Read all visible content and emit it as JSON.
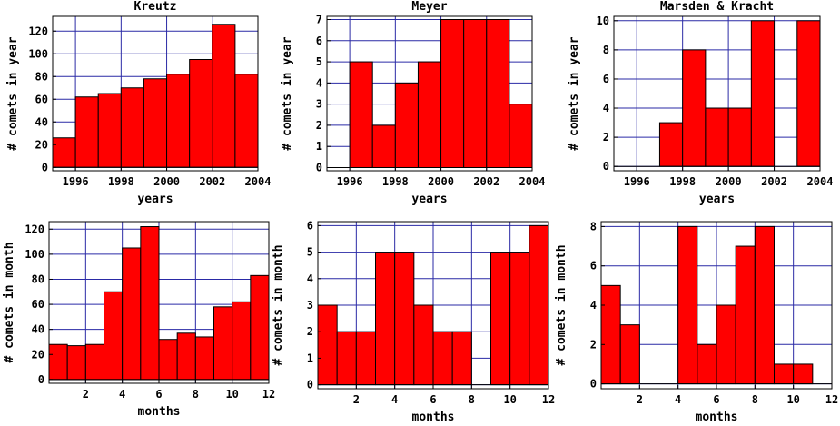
{
  "chart_data": [
    {
      "type": "bar",
      "title": "Kreutz",
      "xlabel": "years",
      "ylabel": "# comets in year",
      "xlim": [
        1995,
        2004
      ],
      "ylim": [
        -3,
        133
      ],
      "xticks": [
        1996,
        1998,
        2000,
        2002,
        2004
      ],
      "yticks": [
        0,
        20,
        40,
        60,
        80,
        100,
        120
      ],
      "bin_starts": [
        1995,
        1996,
        1997,
        1998,
        1999,
        2000,
        2001,
        2002,
        2003
      ],
      "bin_width": 1,
      "values": [
        26,
        62,
        65,
        70,
        78,
        82,
        95,
        126,
        82
      ],
      "grid": true
    },
    {
      "type": "bar",
      "title": "Meyer",
      "xlabel": "years",
      "ylabel": "# comets in year",
      "xlim": [
        1995,
        2004
      ],
      "ylim": [
        -0.15,
        7.15
      ],
      "xticks": [
        1996,
        1998,
        2000,
        2002,
        2004
      ],
      "yticks": [
        0,
        1,
        2,
        3,
        4,
        5,
        6,
        7
      ],
      "bin_starts": [
        1995,
        1996,
        1997,
        1998,
        1999,
        2000,
        2001,
        2002,
        2003
      ],
      "bin_width": 1,
      "values": [
        0,
        5,
        2,
        4,
        5,
        7,
        7,
        7,
        3
      ],
      "grid": true
    },
    {
      "type": "bar",
      "title": "Marsden & Kracht",
      "xlabel": "years",
      "ylabel": "# comets in year",
      "xlim": [
        1995,
        2004
      ],
      "ylim": [
        -0.3,
        10.3
      ],
      "xticks": [
        1996,
        1998,
        2000,
        2002,
        2004
      ],
      "yticks": [
        0,
        2,
        4,
        6,
        8,
        10
      ],
      "bin_starts": [
        1995,
        1996,
        1997,
        1998,
        1999,
        2000,
        2001,
        2002,
        2003
      ],
      "bin_width": 1,
      "values": [
        0,
        0,
        3,
        8,
        4,
        4,
        10,
        0,
        10
      ],
      "grid": true
    },
    {
      "type": "bar",
      "title": "",
      "xlabel": "months",
      "ylabel": "# comets in month",
      "xlim": [
        0,
        12
      ],
      "ylim": [
        -3,
        126
      ],
      "xticks": [
        2,
        4,
        6,
        8,
        10,
        12
      ],
      "yticks": [
        0,
        20,
        40,
        60,
        80,
        100,
        120
      ],
      "bin_starts": [
        0,
        1,
        2,
        3,
        4,
        5,
        6,
        7,
        8,
        9,
        10,
        11
      ],
      "bin_width": 1,
      "values": [
        28,
        27,
        28,
        70,
        105,
        122,
        32,
        37,
        34,
        58,
        62,
        83
      ],
      "grid": true
    },
    {
      "type": "bar",
      "title": "",
      "xlabel": "months",
      "ylabel": "# comets in month",
      "xlim": [
        0,
        12
      ],
      "ylim": [
        -0.15,
        6.15
      ],
      "xticks": [
        2,
        4,
        6,
        8,
        10,
        12
      ],
      "yticks": [
        0,
        1,
        2,
        3,
        4,
        5,
        6
      ],
      "bin_starts": [
        0,
        1,
        2,
        3,
        4,
        5,
        6,
        7,
        8,
        9,
        10,
        11
      ],
      "bin_width": 1,
      "values": [
        3,
        2,
        2,
        5,
        5,
        3,
        2,
        2,
        0,
        5,
        5,
        6
      ],
      "grid": true
    },
    {
      "type": "bar",
      "title": "",
      "xlabel": "months",
      "ylabel": "# comets in month",
      "xlim": [
        0,
        12
      ],
      "ylim": [
        -0.25,
        8.25
      ],
      "xticks": [
        2,
        4,
        6,
        8,
        10,
        12
      ],
      "yticks": [
        0,
        2,
        4,
        6,
        8
      ],
      "bin_starts": [
        0,
        1,
        2,
        3,
        4,
        5,
        6,
        7,
        8,
        9,
        10,
        11
      ],
      "bin_width": 1,
      "values": [
        5,
        3,
        0,
        0,
        8,
        2,
        4,
        7,
        8,
        1,
        1,
        0
      ],
      "grid": true
    }
  ]
}
